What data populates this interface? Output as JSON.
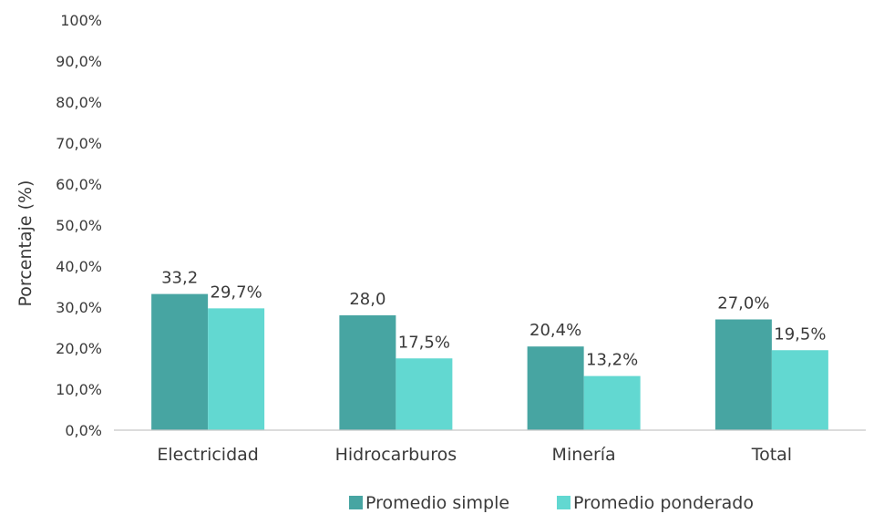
{
  "chart_data": {
    "type": "bar",
    "title": "",
    "xlabel": "",
    "ylabel": "Porcentaje (%)",
    "ylim": [
      0,
      100
    ],
    "y_ticks": [
      0,
      10,
      20,
      30,
      40,
      50,
      60,
      70,
      80,
      90,
      100
    ],
    "y_tick_labels": [
      "0,0%",
      "10,0%",
      "20,0%",
      "30,0%",
      "40,0%",
      "50,0%",
      "60,0%",
      "70,0%",
      "80,0%",
      "90,0%",
      "100%"
    ],
    "categories": [
      "Electricidad",
      "Hidrocarburos",
      "Minería",
      "Total"
    ],
    "series": [
      {
        "name": "Promedio simple",
        "color": "#47a5a2",
        "values": [
          33.2,
          28.0,
          20.4,
          27.0
        ],
        "labels": [
          "33,2",
          "28,0",
          "20,4%",
          "27,0%"
        ]
      },
      {
        "name": "Promedio ponderado",
        "color": "#62d8d1",
        "values": [
          29.7,
          17.5,
          13.2,
          19.5
        ],
        "labels": [
          "29,7%",
          "17,5%",
          "13,2%",
          "19,5%"
        ]
      }
    ],
    "grid": false,
    "legend_position": "bottom-right"
  }
}
